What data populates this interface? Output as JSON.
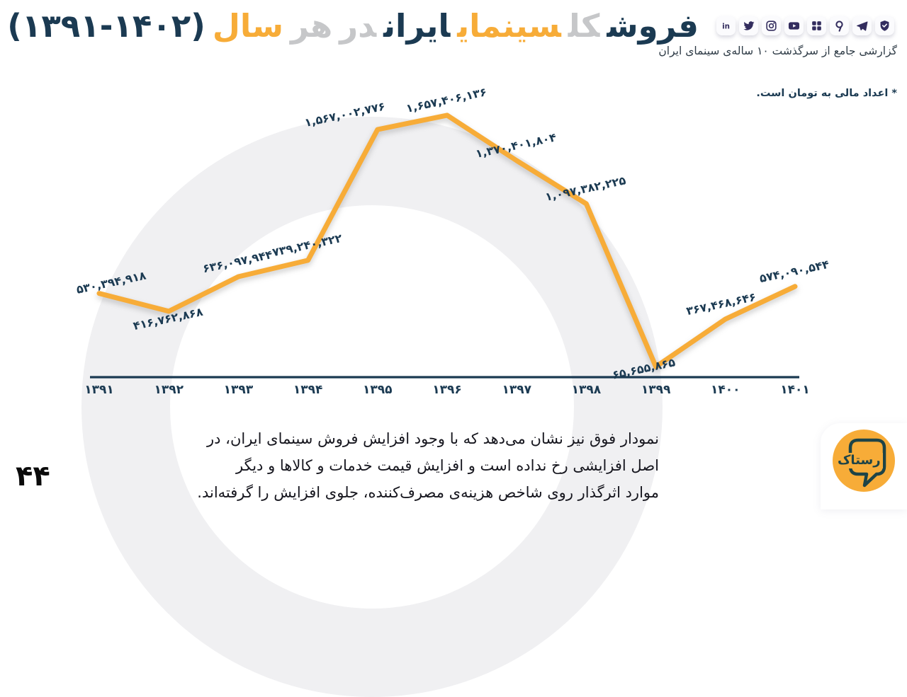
{
  "colors": {
    "navy": "#1b3a52",
    "orange": "#f7ac38",
    "title_gray": "#c6c7c9",
    "ring_gray": "#f0f0f2",
    "icon_ink": "#332d5e",
    "body_text": "#16161e"
  },
  "header": {
    "title_parts": [
      {
        "text": "فروش",
        "tone": "navy"
      },
      {
        "text": "کل",
        "tone": "gray"
      },
      {
        "text": "سینمای",
        "tone": "orange"
      },
      {
        "text": "ایران",
        "tone": "navy"
      },
      {
        "text": "در",
        "tone": "gray"
      },
      {
        "text": "هر",
        "tone": "gray"
      },
      {
        "text": "سال",
        "tone": "orange"
      },
      {
        "text": "(۱۳۹۱-۱۴۰۲)",
        "tone": "navy",
        "ltr": true
      }
    ],
    "subtitle": "گزارشی جامع از سرگذشت ۱۰ ساله‌ی سینمای ایران",
    "social_icons": [
      "linkedin",
      "twitter",
      "instagram",
      "youtube",
      "aparat",
      "virgool",
      "telegram",
      "bale"
    ]
  },
  "note": "* اعداد مالی به تومان است.",
  "chart_data": {
    "type": "line",
    "title": "فروش کل سینمای ایران در هر سال (۱۳۹۱-۱۴۰۲)",
    "unit": "تومان",
    "categories": [
      "۱۳۹۱",
      "۱۳۹۲",
      "۱۳۹۳",
      "۱۳۹۴",
      "۱۳۹۵",
      "۱۳۹۶",
      "۱۳۹۷",
      "۱۳۹۸",
      "۱۳۹۹",
      "۱۴۰۰",
      "۱۴۰۱"
    ],
    "values": [
      530394918,
      416762868,
      636097944,
      739240322,
      1567002776,
      1657406136,
      1370401804,
      1097382225,
      65655865,
      367468646,
      574090544
    ],
    "value_labels": [
      "۵۳۰,۳۹۴,۹۱۸",
      "۴۱۶,۷۶۲,۸۶۸",
      "۶۳۶,۰۹۷,۹۴۴",
      "۷۳۹,۲۴۰,۳۲۲",
      "۱,۵۶۷,۰۰۲,۷۷۶",
      "۱,۶۵۷,۴۰۶,۱۳۶",
      "۱,۳۷۰,۴۰۱,۸۰۴",
      "۱,۰۹۷,۳۸۲,۲۲۵",
      "۶۵,۶۵۵,۸۶۵",
      "۳۶۷,۴۶۸,۶۴۶",
      "۵۷۴,۰۹۰,۵۴۴"
    ],
    "xlabel": "",
    "ylabel": "",
    "ylim": [
      0,
      1700000000
    ],
    "grid": false,
    "legend": false,
    "point_labels_shown": true
  },
  "footer": {
    "paragraph_lines": [
      "نمودار فوق نیز نشان می‌دهد که با وجود افزایش فروش سینمای ایران، در",
      "اصل افزایشی رخ نداده است و افزایش قیمت خدمات و کالاها و دیگر",
      "موارد اثرگذار روی شاخص هزینه‌ی مصرف‌کننده، جلوی افزایش را گرفته‌اند."
    ],
    "page_number": "۴۴",
    "logo_text": "رستاک"
  }
}
